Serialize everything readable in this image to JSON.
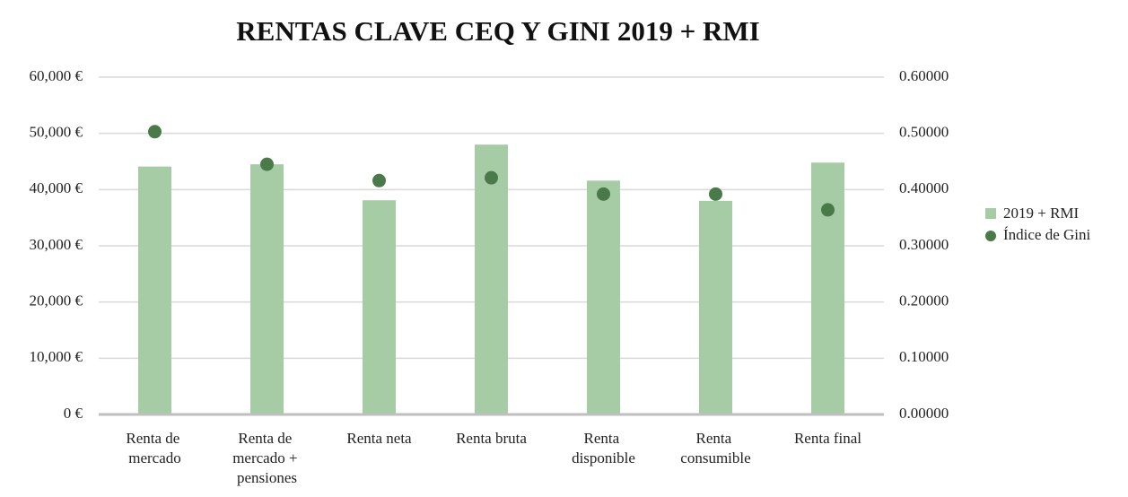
{
  "chart_data": {
    "type": "bar_scatter",
    "title": "RENTAS CLAVE CEQ Y GINI 2019 + RMI",
    "categories": [
      "Renta de mercado",
      "Renta de mercado + pensiones",
      "Renta neta",
      "Renta bruta",
      "Renta disponible",
      "Renta consumible",
      "Renta final"
    ],
    "series": [
      {
        "name": "2019 + RMI",
        "color": "#a6cca6",
        "values": [
          44100,
          44500,
          38100,
          48000,
          41600,
          38000,
          44800
        ]
      },
      {
        "name": "Índice de Gini",
        "color": "#4a7a4a",
        "axis": "y2",
        "values": [
          0.503,
          0.445,
          0.416,
          0.421,
          0.392,
          0.392,
          0.364
        ]
      }
    ],
    "ylim": [
      0,
      60000
    ],
    "yticks": [
      {
        "value": 0,
        "label": "0 €"
      },
      {
        "value": 10000,
        "label": "10,000 €"
      },
      {
        "value": 20000,
        "label": "20,000 €"
      },
      {
        "value": 30000,
        "label": "30,000 €"
      },
      {
        "value": 40000,
        "label": "40,000 €"
      },
      {
        "value": 50000,
        "label": "50,000 €"
      },
      {
        "value": 60000,
        "label": "60,000 €"
      }
    ],
    "y2lim": [
      0,
      0.6
    ],
    "y2ticks": [
      {
        "value": 0,
        "label": "0.00000"
      },
      {
        "value": 0.1,
        "label": "0.10000"
      },
      {
        "value": 0.2,
        "label": "0.20000"
      },
      {
        "value": 0.3,
        "label": "0.30000"
      },
      {
        "value": 0.4,
        "label": "0.40000"
      },
      {
        "value": 0.5,
        "label": "0.50000"
      },
      {
        "value": 0.6,
        "label": "0.60000"
      }
    ],
    "grid": true,
    "legend": "right"
  }
}
